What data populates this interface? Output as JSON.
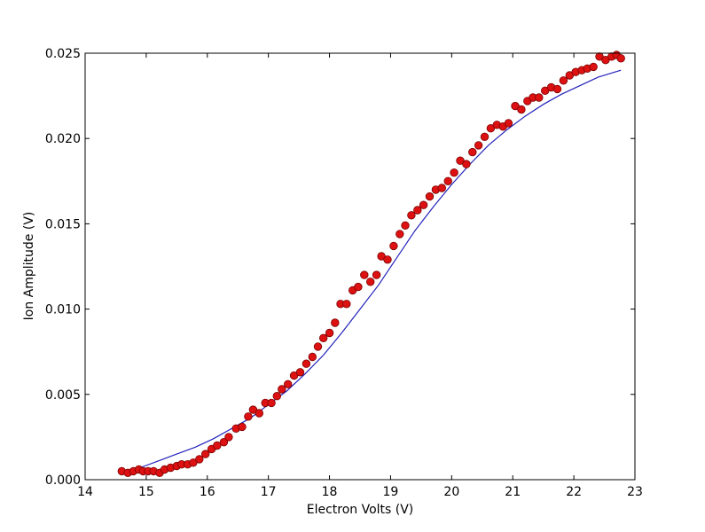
{
  "chart_data": {
    "type": "scatter",
    "title": "",
    "xlabel": "Electron Volts (V)",
    "ylabel": "Ion Amplitude (V)",
    "xlim": [
      14,
      23
    ],
    "ylim": [
      0.0,
      0.025
    ],
    "xticks": [
      "14",
      "15",
      "16",
      "17",
      "18",
      "19",
      "20",
      "21",
      "22",
      "23"
    ],
    "yticks": [
      "0.000",
      "0.005",
      "0.010",
      "0.015",
      "0.020",
      "0.025"
    ],
    "grid": false,
    "legend": "none",
    "series": [
      {
        "kind": "points",
        "color": "#dd1111",
        "edge_color": "#7a0000",
        "x": [
          14.6,
          14.7,
          14.79,
          14.88,
          14.95,
          15.03,
          15.12,
          15.22,
          15.3,
          15.4,
          15.5,
          15.58,
          15.68,
          15.77,
          15.87,
          15.97,
          16.07,
          16.16,
          16.27,
          16.35,
          16.47,
          16.57,
          16.67,
          16.75,
          16.85,
          16.95,
          17.05,
          17.14,
          17.22,
          17.32,
          17.42,
          17.52,
          17.62,
          17.72,
          17.81,
          17.9,
          18.0,
          18.09,
          18.18,
          18.28,
          18.38,
          18.47,
          18.57,
          18.67,
          18.77,
          18.85,
          18.95,
          19.05,
          19.15,
          19.24,
          19.34,
          19.44,
          19.54,
          19.64,
          19.74,
          19.84,
          19.94,
          20.04,
          20.14,
          20.24,
          20.34,
          20.44,
          20.54,
          20.64,
          20.74,
          20.84,
          20.93,
          21.04,
          21.14,
          21.24,
          21.33,
          21.43,
          21.53,
          21.63,
          21.73,
          21.83,
          21.93,
          22.03,
          22.13,
          22.22,
          22.32,
          22.42,
          22.52,
          22.62,
          22.7,
          22.77
        ],
        "y": [
          0.0005,
          0.0004,
          0.0005,
          0.0006,
          0.0005,
          0.0005,
          0.0005,
          0.0004,
          0.0006,
          0.0007,
          0.0008,
          0.0009,
          0.0009,
          0.001,
          0.0012,
          0.0015,
          0.0018,
          0.002,
          0.0022,
          0.0025,
          0.003,
          0.0031,
          0.0037,
          0.0041,
          0.0039,
          0.0045,
          0.0045,
          0.0049,
          0.0053,
          0.0056,
          0.0061,
          0.0063,
          0.0068,
          0.0072,
          0.0078,
          0.0083,
          0.0086,
          0.0092,
          0.0103,
          0.0103,
          0.0111,
          0.0113,
          0.012,
          0.0116,
          0.012,
          0.0131,
          0.0129,
          0.0137,
          0.0144,
          0.0149,
          0.0155,
          0.0158,
          0.0161,
          0.0166,
          0.017,
          0.0171,
          0.0175,
          0.018,
          0.0187,
          0.0185,
          0.0192,
          0.0196,
          0.0201,
          0.0206,
          0.0208,
          0.0207,
          0.0209,
          0.0219,
          0.0217,
          0.0222,
          0.0224,
          0.0224,
          0.0228,
          0.023,
          0.0229,
          0.0234,
          0.0237,
          0.0239,
          0.024,
          0.0241,
          0.0242,
          0.0248,
          0.0246,
          0.0248,
          0.0249,
          0.0247
        ]
      },
      {
        "kind": "line",
        "color": "#2222bb",
        "x": [
          14.6,
          14.9,
          15.2,
          15.5,
          15.8,
          16.1,
          16.4,
          16.7,
          17.0,
          17.3,
          17.6,
          17.9,
          18.2,
          18.5,
          18.8,
          19.1,
          19.4,
          19.7,
          20.0,
          20.3,
          20.6,
          20.9,
          21.2,
          21.5,
          21.8,
          22.1,
          22.4,
          22.77
        ],
        "y": [
          0.0003,
          0.0007,
          0.0011,
          0.0015,
          0.0019,
          0.0024,
          0.003,
          0.0036,
          0.0044,
          0.0052,
          0.0062,
          0.0073,
          0.0086,
          0.01,
          0.0114,
          0.013,
          0.0146,
          0.016,
          0.0173,
          0.0185,
          0.0196,
          0.0205,
          0.0213,
          0.022,
          0.0226,
          0.0231,
          0.0236,
          0.024
        ]
      }
    ]
  }
}
